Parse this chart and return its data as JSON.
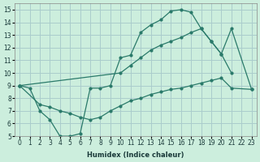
{
  "xlabel": "Humidex (Indice chaleur)",
  "bg_color": "#cceedd",
  "grid_color": "#aacccc",
  "line_color": "#2a7a6a",
  "xlim": [
    -0.5,
    23.5
  ],
  "ylim": [
    5,
    15.5
  ],
  "xticks": [
    0,
    1,
    2,
    3,
    4,
    5,
    6,
    7,
    8,
    9,
    10,
    11,
    12,
    13,
    14,
    15,
    16,
    17,
    18,
    19,
    20,
    21,
    22,
    23
  ],
  "yticks": [
    5,
    6,
    7,
    8,
    9,
    10,
    11,
    12,
    13,
    14,
    15
  ],
  "line1_x": [
    0,
    1,
    2,
    3,
    4,
    5,
    6,
    7,
    8,
    9,
    10,
    11,
    12,
    13,
    14,
    15,
    16,
    17,
    18,
    19,
    20,
    21,
    22,
    23
  ],
  "line1_y": [
    9.0,
    8.8,
    7.0,
    6.3,
    5.0,
    5.0,
    5.2,
    8.8,
    8.8,
    9.0,
    11.2,
    11.4,
    13.2,
    13.8,
    14.2,
    14.9,
    15.0,
    14.8,
    13.5,
    12.5,
    11.5,
    10.0,
    null,
    null
  ],
  "line2_x": [
    0,
    1,
    2,
    3,
    4,
    5,
    6,
    7,
    8,
    9,
    10,
    11,
    12,
    13,
    14,
    15,
    16,
    17,
    18,
    19,
    20,
    21,
    22,
    23
  ],
  "line2_y": [
    9.0,
    null,
    null,
    null,
    null,
    null,
    null,
    null,
    null,
    null,
    10.0,
    10.6,
    11.2,
    11.8,
    12.2,
    12.5,
    12.8,
    13.2,
    13.5,
    12.5,
    11.5,
    13.5,
    null,
    8.7
  ],
  "line3_x": [
    0,
    2,
    3,
    4,
    5,
    6,
    7,
    8,
    9,
    10,
    11,
    12,
    13,
    14,
    15,
    16,
    17,
    18,
    19,
    20,
    21,
    22,
    23
  ],
  "line3_y": [
    9.0,
    7.5,
    7.3,
    7.0,
    6.8,
    6.5,
    6.3,
    6.5,
    7.0,
    7.4,
    7.8,
    8.0,
    8.3,
    8.5,
    8.7,
    8.8,
    9.0,
    9.2,
    9.4,
    9.6,
    8.8,
    null,
    8.7
  ]
}
